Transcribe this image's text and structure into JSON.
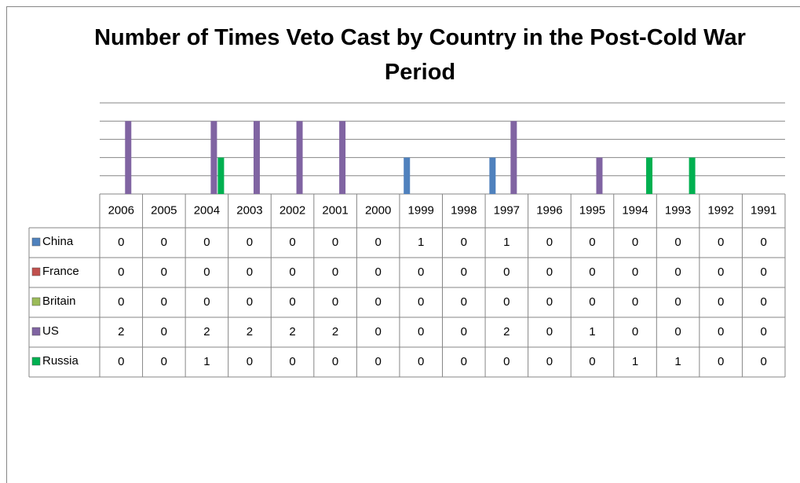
{
  "chart_data": {
    "type": "bar",
    "title": "Number of Times Veto Cast by Country in the Post-Cold War Period",
    "categories": [
      "2006",
      "2005",
      "2004",
      "2003",
      "2002",
      "2001",
      "2000",
      "1999",
      "1998",
      "1997",
      "1996",
      "1995",
      "1994",
      "1993",
      "1992",
      "1991"
    ],
    "series": [
      {
        "name": "China",
        "color": "#4f81bd",
        "values": [
          0,
          0,
          0,
          0,
          0,
          0,
          0,
          1,
          0,
          1,
          0,
          0,
          0,
          0,
          0,
          0
        ]
      },
      {
        "name": "France",
        "color": "#c0504d",
        "values": [
          0,
          0,
          0,
          0,
          0,
          0,
          0,
          0,
          0,
          0,
          0,
          0,
          0,
          0,
          0,
          0
        ]
      },
      {
        "name": "Britain",
        "color": "#9bbb59",
        "values": [
          0,
          0,
          0,
          0,
          0,
          0,
          0,
          0,
          0,
          0,
          0,
          0,
          0,
          0,
          0,
          0
        ]
      },
      {
        "name": "US",
        "color": "#8064a2",
        "values": [
          2,
          0,
          2,
          2,
          2,
          2,
          0,
          0,
          0,
          2,
          0,
          1,
          0,
          0,
          0,
          0
        ]
      },
      {
        "name": "Russia",
        "color": "#00b050",
        "values": [
          0,
          0,
          1,
          0,
          0,
          0,
          0,
          0,
          0,
          0,
          0,
          0,
          1,
          1,
          0,
          0
        ]
      }
    ],
    "ylim": [
      0,
      2.5
    ],
    "yticks": [
      0,
      0.5,
      1,
      1.5,
      2,
      2.5
    ],
    "grid": true
  }
}
